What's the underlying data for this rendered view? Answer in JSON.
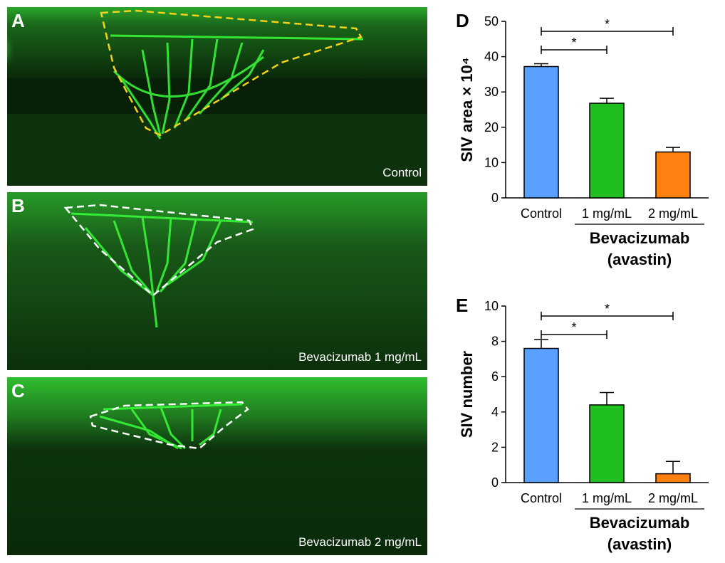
{
  "panels": [
    {
      "letter": "A",
      "caption": "Control"
    },
    {
      "letter": "B",
      "caption": "Bevacizumab 1 mg/mL"
    },
    {
      "letter": "C",
      "caption": "Bevacizumab 2 mg/mL"
    }
  ],
  "colors": {
    "control": "#5aa0ff",
    "dose1": "#1fbf1f",
    "dose2": "#ff7f10",
    "outline_control": "#f2d21a",
    "outline_treated": "#ffffff",
    "vessel": "#39ff3a"
  },
  "chart_data": [
    {
      "type": "bar",
      "panel_letter": "D",
      "categories": [
        "Control",
        "1 mg/mL",
        "2 mg/mL"
      ],
      "values": [
        37.2,
        26.8,
        13.0
      ],
      "errors": [
        0.8,
        1.4,
        1.3
      ],
      "ylabel": "SIV area × 10⁴",
      "ylim": [
        0,
        50
      ],
      "yticks": [
        0,
        10,
        20,
        30,
        40,
        50
      ],
      "group_label_line1": "Bevacizumab",
      "group_label_line2": "(avastin)",
      "significance": [
        {
          "from": 0,
          "to": 2,
          "label": "*"
        },
        {
          "from": 0,
          "to": 1,
          "label": "*"
        }
      ],
      "grid": false
    },
    {
      "type": "bar",
      "panel_letter": "E",
      "categories": [
        "Control",
        "1 mg/mL",
        "2 mg/mL"
      ],
      "values": [
        7.6,
        4.4,
        0.5
      ],
      "errors": [
        0.5,
        0.7,
        0.7
      ],
      "ylabel": "SIV number",
      "ylim": [
        0,
        10
      ],
      "yticks": [
        0,
        2,
        4,
        6,
        8,
        10
      ],
      "group_label_line1": "Bevacizumab",
      "group_label_line2": "(avastin)",
      "significance": [
        {
          "from": 0,
          "to": 2,
          "label": "*"
        },
        {
          "from": 0,
          "to": 1,
          "label": "*"
        }
      ],
      "grid": false
    }
  ]
}
